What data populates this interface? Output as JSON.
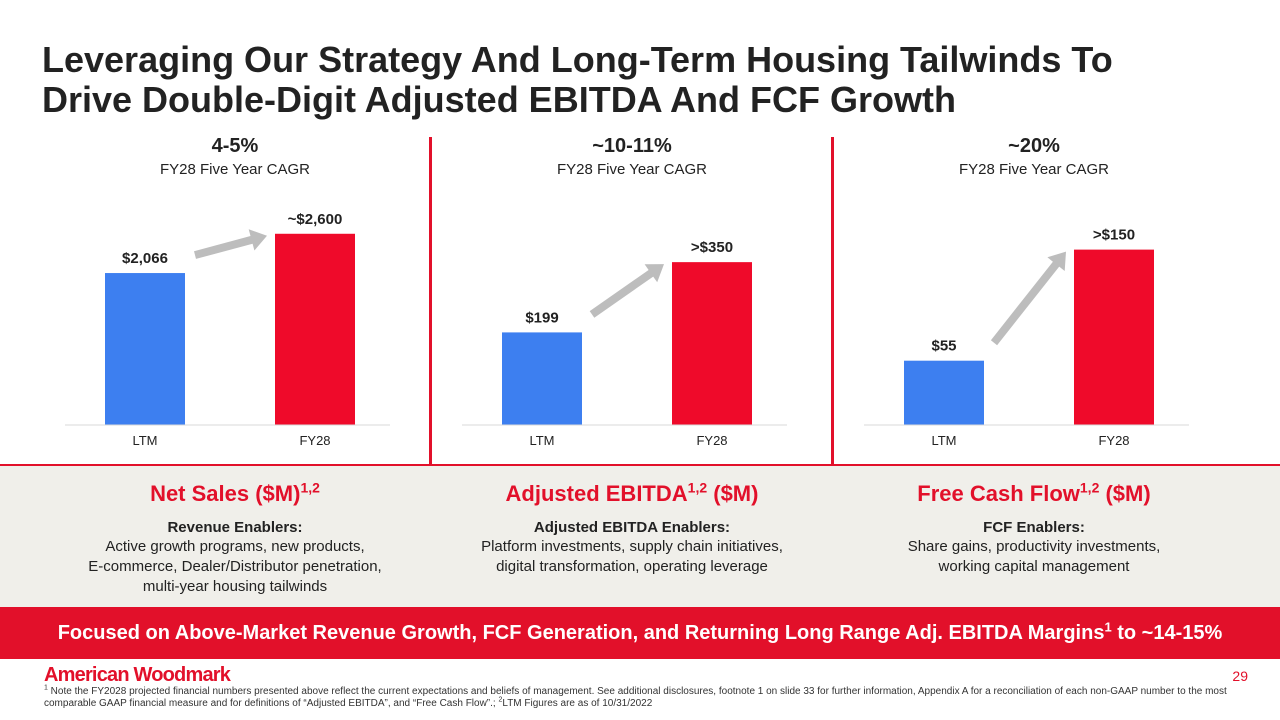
{
  "title": {
    "line1": "Leveraging Our Strategy And Long-Term Housing Tailwinds To",
    "line2": "Drive Double-Digit Adjusted EBITDA And FCF Growth"
  },
  "colors": {
    "accent": "#e2102a",
    "ltm_bar": "#3d7ff0",
    "fy28_bar": "#ef0a2a",
    "arrow": "#bdbdbd",
    "band_bg": "#f0efea"
  },
  "panels": [
    {
      "cagr": "4-5%",
      "cagr_label": "FY28 Five Year CAGR",
      "heading": "Net Sales ($M)",
      "heading_sup": "1,2",
      "heading_suffix": "",
      "enablers_title": "Revenue Enablers:",
      "enablers_lines": [
        "Active growth programs, new products,",
        "E-commerce, Dealer/Distributor penetration,",
        "multi-year housing tailwinds"
      ]
    },
    {
      "cagr": "~10-11%",
      "cagr_label": "FY28 Five Year CAGR",
      "heading": "Adjusted EBITDA",
      "heading_sup": "1,2",
      "heading_suffix": " ($M)",
      "enablers_title": "Adjusted EBITDA Enablers:",
      "enablers_lines": [
        "Platform investments, supply chain initiatives,",
        "digital transformation, operating leverage"
      ]
    },
    {
      "cagr": "~20%",
      "cagr_label": "FY28 Five Year CAGR",
      "heading": "Free Cash Flow",
      "heading_sup": "1,2",
      "heading_suffix": " ($M)",
      "enablers_title": "FCF Enablers:",
      "enablers_lines": [
        "Share gains, productivity investments,",
        "working capital management"
      ]
    }
  ],
  "chart_data": [
    {
      "type": "bar",
      "categories": [
        "LTM",
        "FY28"
      ],
      "values": [
        2066,
        2600
      ],
      "data_labels": [
        "$2,066",
        "~$2,600"
      ],
      "ylim": [
        0,
        3100
      ]
    },
    {
      "type": "bar",
      "categories": [
        "LTM",
        "FY28"
      ],
      "values": [
        199,
        350
      ],
      "data_labels": [
        "$199",
        ">$350"
      ],
      "ylim": [
        0,
        490
      ]
    },
    {
      "type": "bar",
      "categories": [
        "LTM",
        "FY28"
      ],
      "values": [
        55,
        150
      ],
      "data_labels": [
        "$55",
        ">$150"
      ],
      "ylim": [
        0,
        195
      ]
    }
  ],
  "banner": {
    "text": "Focused on Above-Market Revenue Growth, FCF Generation, and Returning Long Range Adj. EBITDA Margins",
    "sup": "1",
    "suffix": " to ~14-15%"
  },
  "logo": "American Woodmark",
  "page_number": "29",
  "footnote": {
    "sup1": "1",
    "part1": " Note the FY2028 projected financial numbers presented above reflect the current expectations and beliefs of management. See additional disclosures, footnote 1 on slide 33 for further information, Appendix A for a reconciliation of each non-GAAP number to the most comparable GAAP financial measure and for definitions of “Adjusted EBITDA”, and “Free Cash Flow”.; ",
    "sup2": "2",
    "part2": "LTM Figures are as of 10/31/2022"
  }
}
